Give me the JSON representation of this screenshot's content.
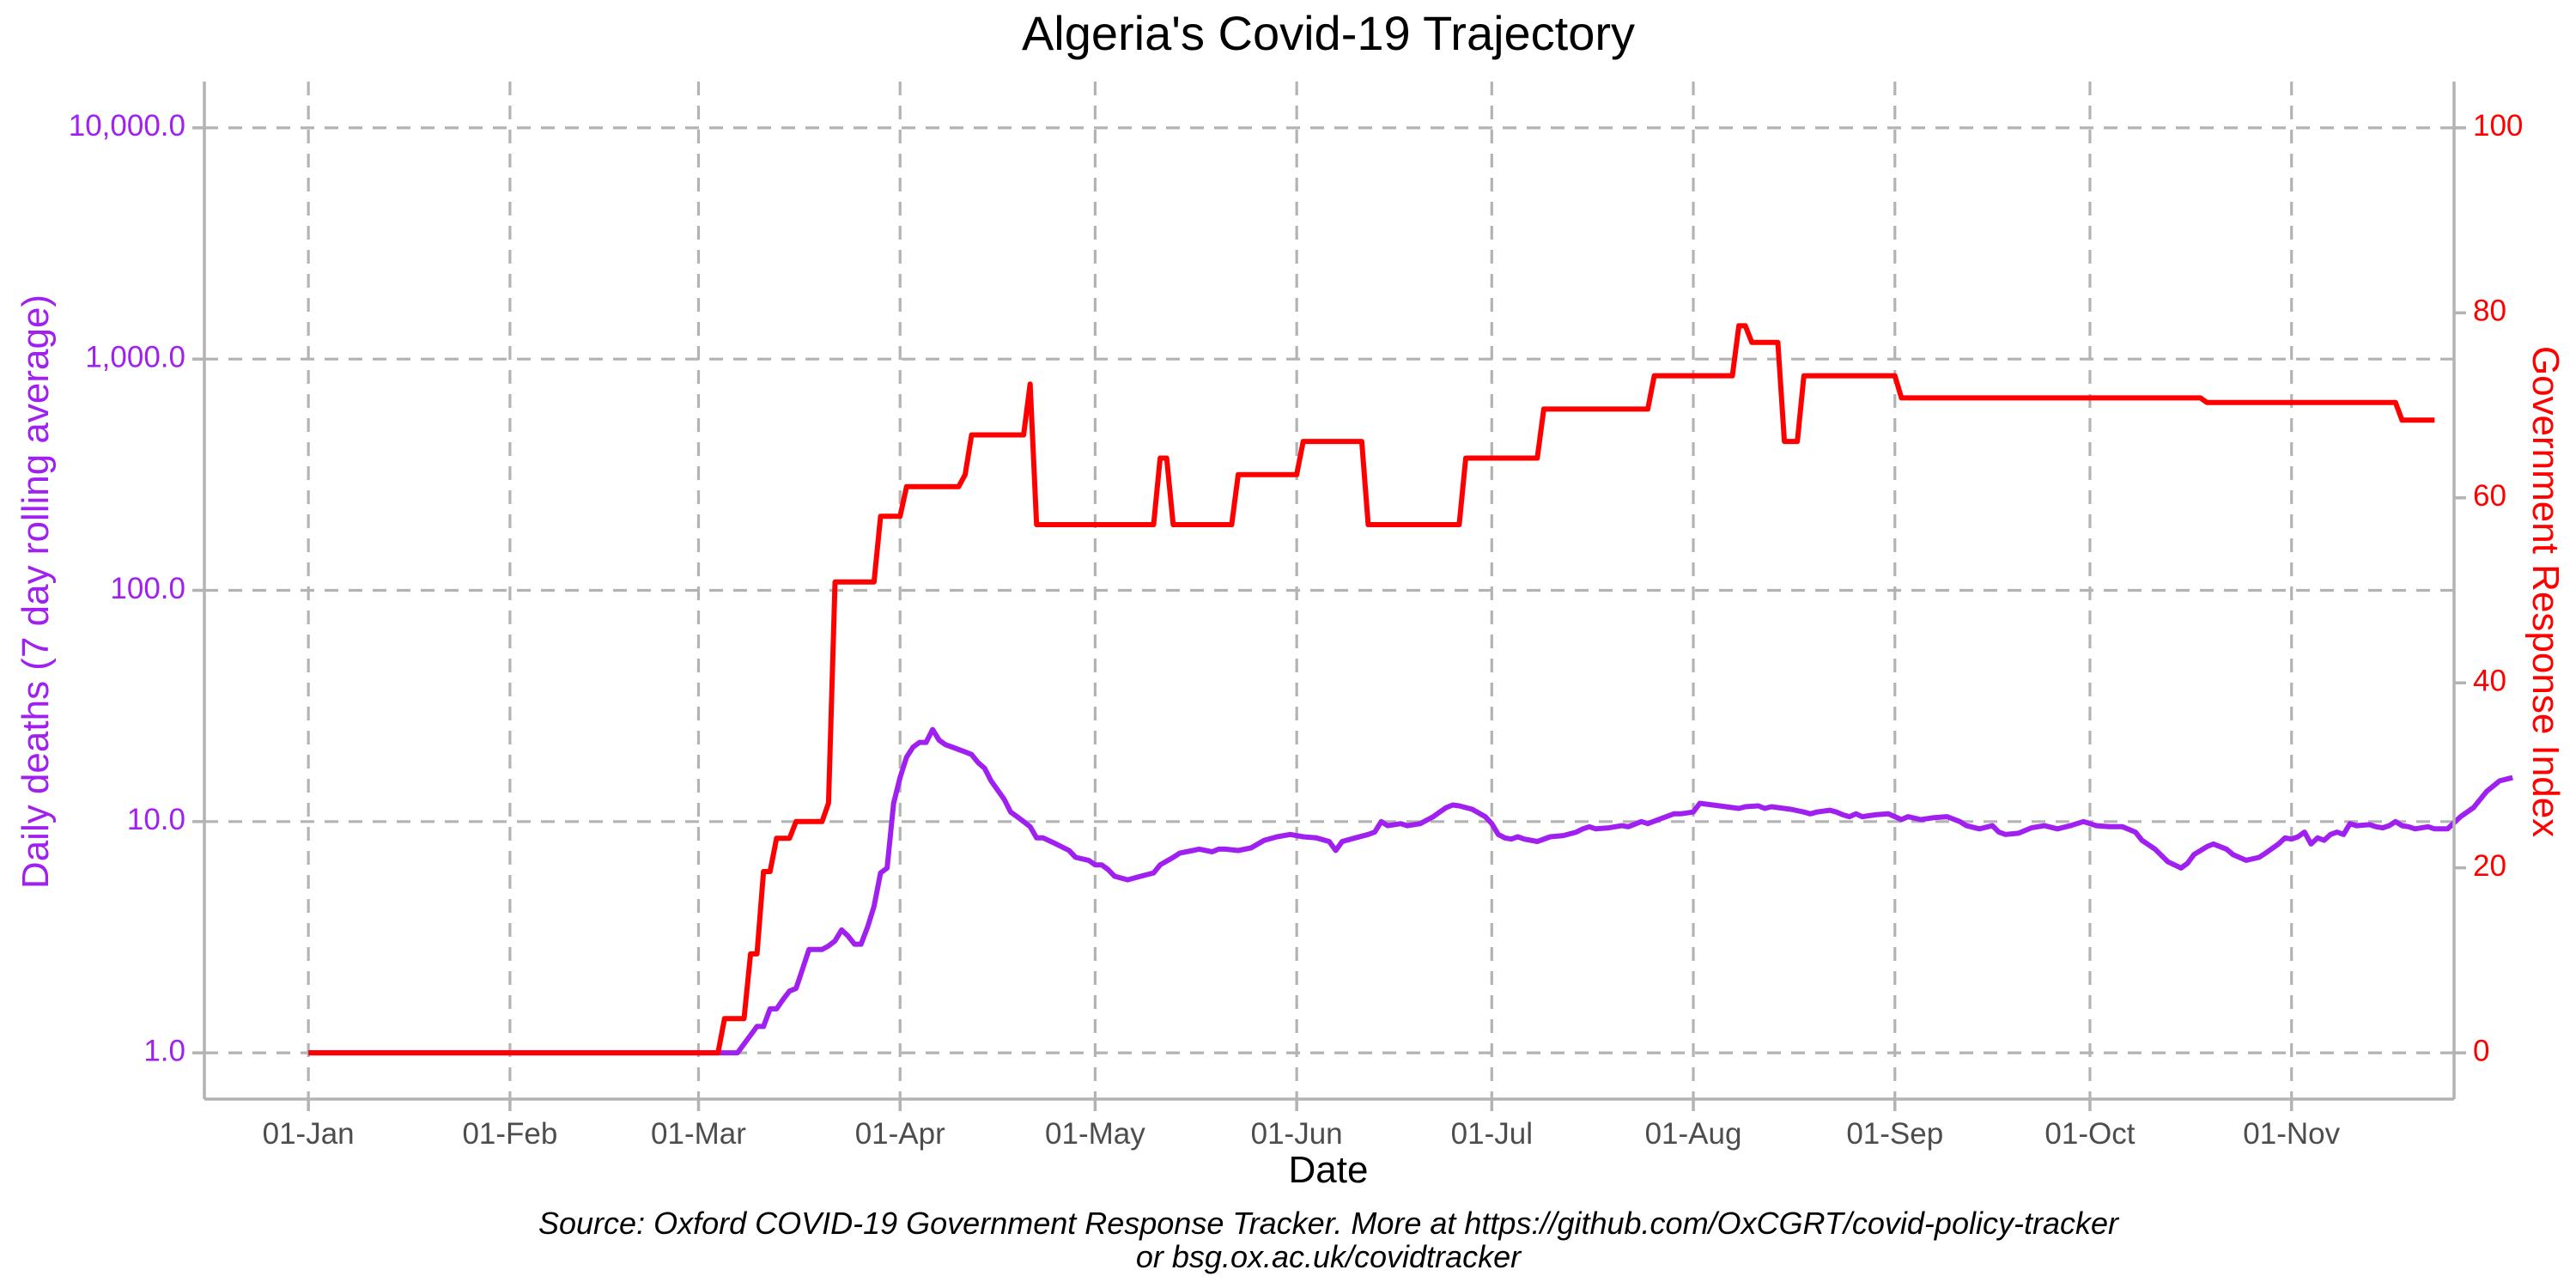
{
  "chart_data": {
    "type": "line",
    "title": "Algeria's Covid-19 Trajectory",
    "xlabel": "Date",
    "ylabel_left": "Daily deaths (7 day rolling average)",
    "ylabel_right": "Government Response Index",
    "caption_line1": "Source: Oxford COVID-19 Government Response Tracker. More at https://github.com/OxCGRT/covid-policy-tracker",
    "caption_line2": "or bsg.ox.ac.uk/covidtracker",
    "x_ticks": [
      {
        "label": "01-Jan",
        "day": 1
      },
      {
        "label": "01-Feb",
        "day": 32
      },
      {
        "label": "01-Mar",
        "day": 61
      },
      {
        "label": "01-Apr",
        "day": 92
      },
      {
        "label": "01-May",
        "day": 122
      },
      {
        "label": "01-Jun",
        "day": 153
      },
      {
        "label": "01-Jul",
        "day": 183
      },
      {
        "label": "01-Aug",
        "day": 214
      },
      {
        "label": "01-Sep",
        "day": 245
      },
      {
        "label": "01-Oct",
        "day": 275
      },
      {
        "label": "01-Nov",
        "day": 306
      }
    ],
    "x_range": [
      -15,
      331
    ],
    "y_left": {
      "scale": "log10",
      "range_log10": [
        -0.2,
        4.2
      ],
      "ticks": [
        {
          "value": 1,
          "label": "1.0"
        },
        {
          "value": 10,
          "label": "10.0"
        },
        {
          "value": 100,
          "label": "100.0"
        },
        {
          "value": 1000,
          "label": "1,000.0"
        },
        {
          "value": 10000,
          "label": "10,000.0"
        }
      ],
      "color": "#a020f0"
    },
    "y_right": {
      "scale": "linear",
      "range": [
        -5,
        105
      ],
      "ticks": [
        0,
        20,
        40,
        60,
        80,
        100
      ],
      "color": "#ff0000"
    },
    "grid": "dashed",
    "series": [
      {
        "name": "",
        "axis": "left",
        "color": "#a020f0",
        "points": [
          [
            1,
            1.0
          ],
          [
            67,
            1.0
          ],
          [
            70,
            1.3
          ],
          [
            71,
            1.3
          ],
          [
            72,
            1.55
          ],
          [
            73,
            1.55
          ],
          [
            74,
            1.7
          ],
          [
            75,
            1.85
          ],
          [
            76,
            1.9
          ],
          [
            77,
            2.3
          ],
          [
            78,
            2.8
          ],
          [
            80,
            2.8
          ],
          [
            81,
            2.9
          ],
          [
            82,
            3.05
          ],
          [
            83,
            3.4
          ],
          [
            84,
            3.2
          ],
          [
            85,
            2.95
          ],
          [
            86,
            2.95
          ],
          [
            87,
            3.5
          ],
          [
            88,
            4.3
          ],
          [
            89,
            6.0
          ],
          [
            90,
            6.3
          ],
          [
            91,
            12.0
          ],
          [
            92,
            15.5
          ],
          [
            93,
            19.0
          ],
          [
            94,
            21.0
          ],
          [
            95,
            22.0
          ],
          [
            96,
            22.0
          ],
          [
            97,
            25.0
          ],
          [
            98,
            22.5
          ],
          [
            99,
            21.5
          ],
          [
            100,
            21.0
          ],
          [
            102,
            20.0
          ],
          [
            103,
            19.5
          ],
          [
            104,
            18.0
          ],
          [
            105,
            17.0
          ],
          [
            106,
            15.0
          ],
          [
            108,
            12.5
          ],
          [
            109,
            11.0
          ],
          [
            110,
            10.5
          ],
          [
            111,
            10.0
          ],
          [
            112,
            9.5
          ],
          [
            113,
            8.5
          ],
          [
            114,
            8.5
          ],
          [
            116,
            8.0
          ],
          [
            118,
            7.5
          ],
          [
            119,
            7.0
          ],
          [
            121,
            6.8
          ],
          [
            122,
            6.5
          ],
          [
            123,
            6.5
          ],
          [
            124,
            6.2
          ],
          [
            125,
            5.8
          ],
          [
            127,
            5.6
          ],
          [
            129,
            5.8
          ],
          [
            131,
            6.0
          ],
          [
            132,
            6.5
          ],
          [
            134,
            7.0
          ],
          [
            135,
            7.3
          ],
          [
            137,
            7.5
          ],
          [
            138,
            7.6
          ],
          [
            140,
            7.4
          ],
          [
            141,
            7.6
          ],
          [
            142,
            7.6
          ],
          [
            144,
            7.5
          ],
          [
            146,
            7.7
          ],
          [
            148,
            8.3
          ],
          [
            150,
            8.6
          ],
          [
            152,
            8.8
          ],
          [
            154,
            8.6
          ],
          [
            156,
            8.5
          ],
          [
            158,
            8.2
          ],
          [
            159,
            7.5
          ],
          [
            160,
            8.2
          ],
          [
            162,
            8.5
          ],
          [
            164,
            8.8
          ],
          [
            165,
            9.0
          ],
          [
            166,
            10.0
          ],
          [
            167,
            9.6
          ],
          [
            168,
            9.7
          ],
          [
            169,
            9.8
          ],
          [
            170,
            9.6
          ],
          [
            172,
            9.8
          ],
          [
            174,
            10.5
          ],
          [
            175,
            11.0
          ],
          [
            176,
            11.5
          ],
          [
            177,
            11.8
          ],
          [
            178,
            11.7
          ],
          [
            180,
            11.3
          ],
          [
            182,
            10.5
          ],
          [
            183,
            9.8
          ],
          [
            184,
            8.8
          ],
          [
            185,
            8.5
          ],
          [
            186,
            8.4
          ],
          [
            187,
            8.6
          ],
          [
            188,
            8.4
          ],
          [
            190,
            8.2
          ],
          [
            192,
            8.6
          ],
          [
            194,
            8.7
          ],
          [
            196,
            9.0
          ],
          [
            197,
            9.3
          ],
          [
            198,
            9.5
          ],
          [
            199,
            9.3
          ],
          [
            201,
            9.4
          ],
          [
            203,
            9.6
          ],
          [
            204,
            9.5
          ],
          [
            206,
            10.0
          ],
          [
            207,
            9.8
          ],
          [
            209,
            10.3
          ],
          [
            211,
            10.8
          ],
          [
            212,
            10.8
          ],
          [
            214,
            11.0
          ],
          [
            215,
            12.0
          ],
          [
            217,
            11.8
          ],
          [
            219,
            11.6
          ],
          [
            221,
            11.4
          ],
          [
            222,
            11.6
          ],
          [
            224,
            11.7
          ],
          [
            225,
            11.4
          ],
          [
            226,
            11.6
          ],
          [
            227,
            11.5
          ],
          [
            229,
            11.3
          ],
          [
            231,
            11.0
          ],
          [
            232,
            10.8
          ],
          [
            233,
            11.0
          ],
          [
            235,
            11.2
          ],
          [
            236,
            11.0
          ],
          [
            237,
            10.7
          ],
          [
            238,
            10.5
          ],
          [
            239,
            10.8
          ],
          [
            240,
            10.5
          ],
          [
            242,
            10.7
          ],
          [
            244,
            10.8
          ],
          [
            246,
            10.2
          ],
          [
            247,
            10.5
          ],
          [
            249,
            10.2
          ],
          [
            251,
            10.4
          ],
          [
            253,
            10.5
          ],
          [
            255,
            10.0
          ],
          [
            256,
            9.6
          ],
          [
            258,
            9.3
          ],
          [
            260,
            9.6
          ],
          [
            261,
            9.0
          ],
          [
            262,
            8.8
          ],
          [
            264,
            8.9
          ],
          [
            266,
            9.4
          ],
          [
            268,
            9.6
          ],
          [
            270,
            9.3
          ],
          [
            272,
            9.6
          ],
          [
            274,
            10.0
          ],
          [
            275,
            9.8
          ],
          [
            276,
            9.6
          ],
          [
            278,
            9.5
          ],
          [
            280,
            9.5
          ],
          [
            282,
            9.0
          ],
          [
            283,
            8.3
          ],
          [
            285,
            7.6
          ],
          [
            287,
            6.7
          ],
          [
            289,
            6.3
          ],
          [
            290,
            6.6
          ],
          [
            291,
            7.2
          ],
          [
            293,
            7.8
          ],
          [
            294,
            8.0
          ],
          [
            296,
            7.6
          ],
          [
            297,
            7.2
          ],
          [
            299,
            6.8
          ],
          [
            301,
            7.0
          ],
          [
            302,
            7.3
          ],
          [
            304,
            8.0
          ],
          [
            305,
            8.5
          ],
          [
            306,
            8.4
          ],
          [
            307,
            8.6
          ],
          [
            308,
            9.0
          ],
          [
            309,
            8.0
          ],
          [
            310,
            8.5
          ],
          [
            311,
            8.3
          ],
          [
            312,
            8.8
          ],
          [
            313,
            9.0
          ],
          [
            314,
            8.8
          ],
          [
            315,
            9.8
          ],
          [
            316,
            9.6
          ],
          [
            318,
            9.7
          ],
          [
            319,
            9.5
          ],
          [
            320,
            9.4
          ],
          [
            321,
            9.6
          ],
          [
            322,
            10.0
          ],
          [
            323,
            9.6
          ],
          [
            324,
            9.5
          ],
          [
            325,
            9.3
          ],
          [
            326,
            9.4
          ],
          [
            327,
            9.5
          ],
          [
            328,
            9.3
          ],
          [
            330,
            9.3
          ],
          [
            332,
            10.5
          ],
          [
            334,
            11.5
          ],
          [
            336,
            13.5
          ],
          [
            338,
            15.0
          ],
          [
            340,
            15.5
          ]
        ]
      },
      {
        "name": "",
        "axis": "right",
        "color": "#ff0000",
        "points": [
          [
            1,
            0.0
          ],
          [
            64,
            0.0
          ],
          [
            65,
            3.7
          ],
          [
            68,
            3.7
          ],
          [
            69,
            10.7
          ],
          [
            70,
            10.7
          ],
          [
            71,
            19.6
          ],
          [
            72,
            19.6
          ],
          [
            73,
            23.2
          ],
          [
            75,
            23.2
          ],
          [
            76,
            25.0
          ],
          [
            80,
            25.0
          ],
          [
            81,
            27.0
          ],
          [
            82,
            50.9
          ],
          [
            88,
            50.9
          ],
          [
            89,
            58.0
          ],
          [
            92,
            58.0
          ],
          [
            93,
            61.2
          ],
          [
            101,
            61.2
          ],
          [
            102,
            62.5
          ],
          [
            103,
            66.8
          ],
          [
            111,
            66.8
          ],
          [
            112,
            72.3
          ],
          [
            113,
            57.1
          ],
          [
            131,
            57.1
          ],
          [
            132,
            64.3
          ],
          [
            133,
            64.3
          ],
          [
            134,
            57.1
          ],
          [
            143,
            57.1
          ],
          [
            144,
            62.5
          ],
          [
            153,
            62.5
          ],
          [
            154,
            66.1
          ],
          [
            163,
            66.1
          ],
          [
            164,
            57.1
          ],
          [
            178,
            57.1
          ],
          [
            179,
            64.3
          ],
          [
            190,
            64.3
          ],
          [
            191,
            69.6
          ],
          [
            207,
            69.6
          ],
          [
            208,
            73.2
          ],
          [
            220,
            73.2
          ],
          [
            221,
            78.6
          ],
          [
            222,
            78.6
          ],
          [
            223,
            76.8
          ],
          [
            227,
            76.8
          ],
          [
            228,
            66.1
          ],
          [
            230,
            66.1
          ],
          [
            231,
            73.2
          ],
          [
            245,
            73.2
          ],
          [
            246,
            70.8
          ],
          [
            292,
            70.8
          ],
          [
            293,
            70.3
          ],
          [
            322,
            70.3
          ],
          [
            323,
            68.4
          ],
          [
            328,
            68.4
          ]
        ]
      }
    ]
  }
}
